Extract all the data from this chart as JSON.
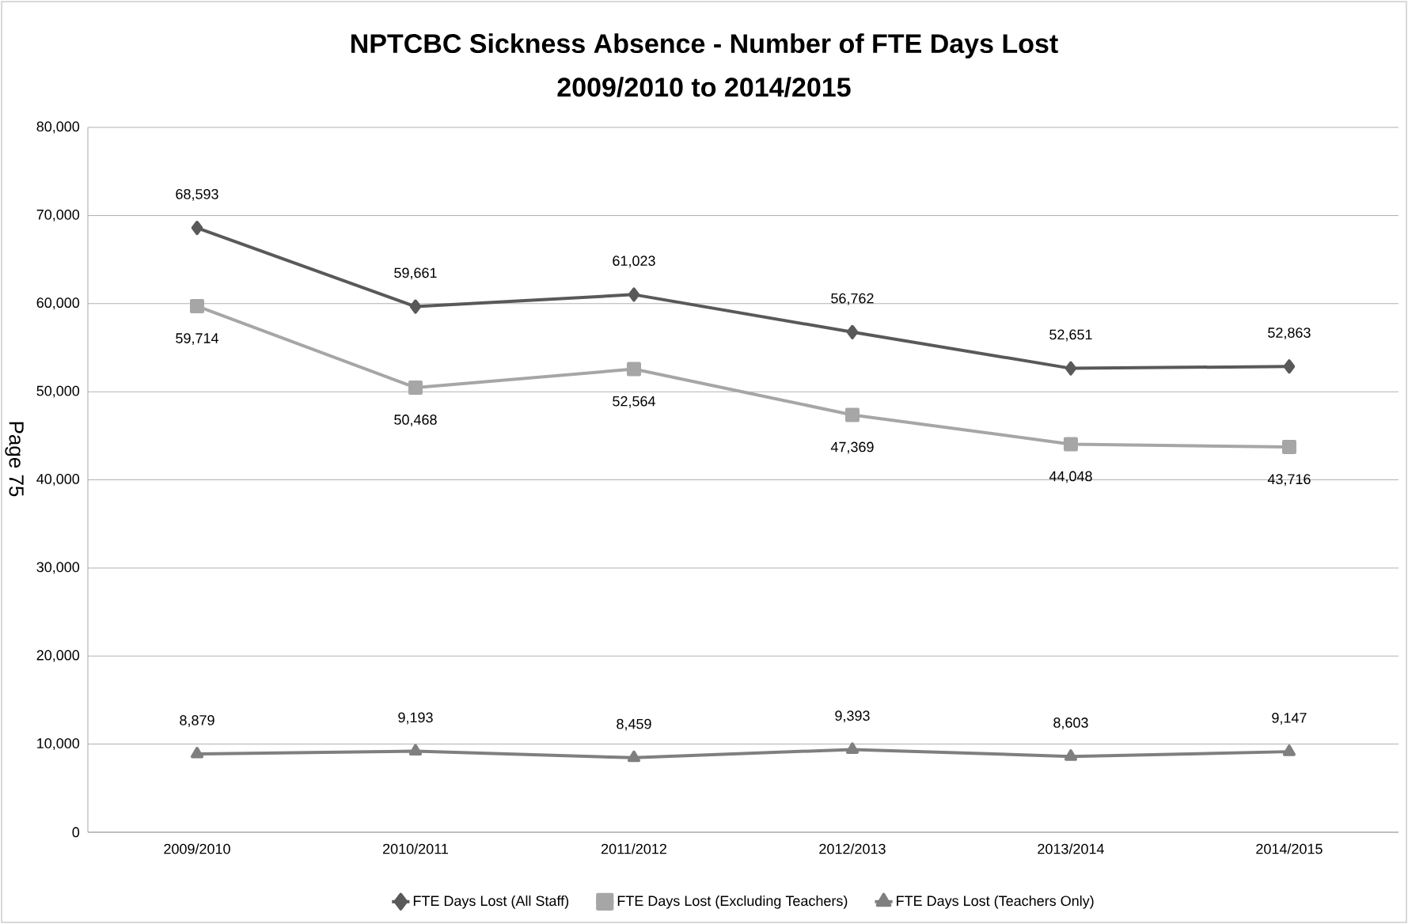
{
  "chart_data": {
    "type": "line",
    "title": "NPTCBC Sickness Absence - Number of FTE Days Lost",
    "subtitle": "2009/2010 to 2014/2015",
    "categories": [
      "2009/2010",
      "2010/2011",
      "2011/2012",
      "2012/2013",
      "2013/2014",
      "2014/2015"
    ],
    "series": [
      {
        "name": "FTE Days Lost (All Staff)",
        "color": "#595959",
        "marker": "diamond",
        "values": [
          68593,
          59661,
          61023,
          56762,
          52651,
          52863
        ],
        "value_labels": [
          "68,593",
          "59,661",
          "61,023",
          "56,762",
          "52,651",
          "52,863"
        ]
      },
      {
        "name": "FTE Days Lost (Excluding Teachers)",
        "color": "#a6a6a6",
        "marker": "square",
        "values": [
          59714,
          50468,
          52564,
          47369,
          44048,
          43716
        ],
        "value_labels": [
          "59,714",
          "50,468",
          "52,564",
          "47,369",
          "44,048",
          "43,716"
        ]
      },
      {
        "name": "FTE Days Lost (Teachers Only)",
        "color": "#7f7f7f",
        "marker": "triangle",
        "values": [
          8879,
          9193,
          8459,
          9393,
          8603,
          9147
        ],
        "value_labels": [
          "8,879",
          "9,193",
          "8,459",
          "9,393",
          "8,603",
          "9,147"
        ]
      }
    ],
    "ylim": [
      0,
      80000
    ],
    "yticks": [
      0,
      {
        "value": 10000,
        "label": "10,000"
      },
      {
        "value": 20000,
        "label": "20,000"
      },
      {
        "value": 30000,
        "label": "30,000"
      },
      {
        "value": 40000,
        "label": "40,000"
      },
      {
        "value": 50000,
        "label": "50,000"
      },
      {
        "value": 60000,
        "label": "60,000"
      },
      {
        "value": 70000,
        "label": "70,000"
      },
      {
        "value": 80000,
        "label": "80,000"
      }
    ],
    "grid": "y",
    "legend": "bottom",
    "line_style": "solid",
    "annotations": [
      "Page 75"
    ]
  }
}
